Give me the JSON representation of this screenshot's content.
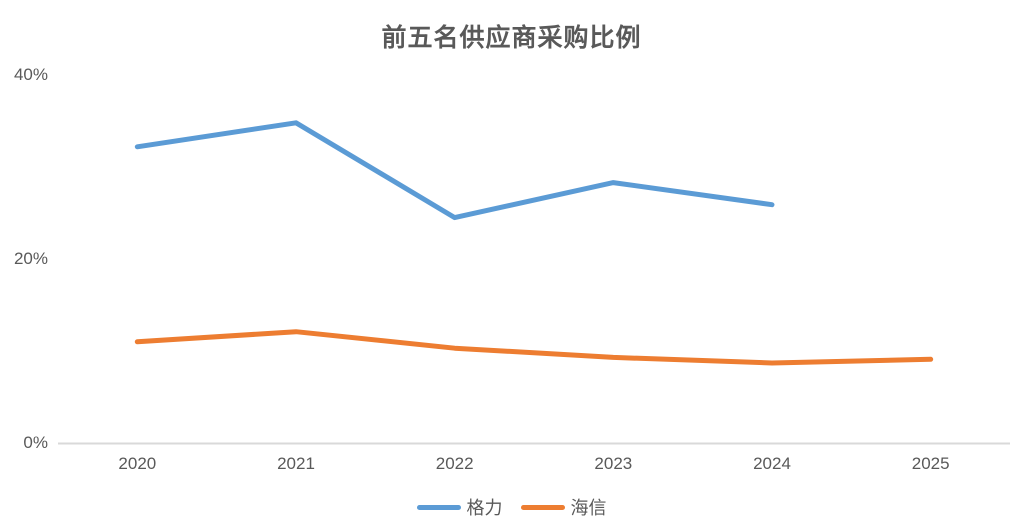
{
  "chart_data": {
    "type": "line",
    "title": "前五名供应商采购比例",
    "categories": [
      "2020",
      "2021",
      "2022",
      "2023",
      "2024",
      "2025"
    ],
    "series": [
      {
        "name": "格力",
        "color": "#5B9BD5",
        "values": [
          32.2,
          34.8,
          24.5,
          28.3,
          25.9,
          null
        ]
      },
      {
        "name": "海信",
        "color": "#ED7D31",
        "values": [
          11.0,
          12.1,
          10.3,
          9.3,
          8.7,
          9.1
        ]
      }
    ],
    "y_ticks": [
      "0%",
      "20%",
      "40%"
    ],
    "y_tick_values": [
      0,
      20,
      40
    ],
    "ylim": [
      0,
      40
    ],
    "xlabel": "",
    "ylabel": "",
    "grid": false,
    "legend_position": "bottom",
    "axis_color": "#D9D9D9",
    "text_color": "#595959",
    "background_color": "#FFFFFF"
  }
}
